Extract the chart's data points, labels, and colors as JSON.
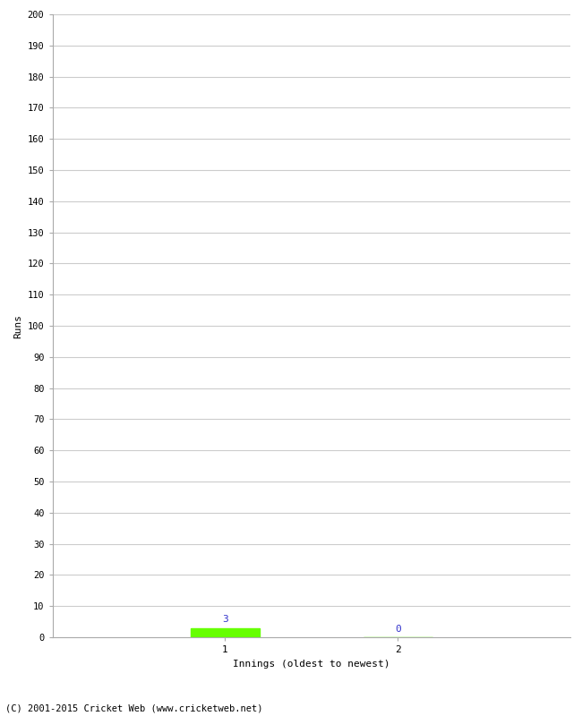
{
  "xlabel": "Innings (oldest to newest)",
  "ylabel": "Runs",
  "categories": [
    1,
    2
  ],
  "values": [
    3,
    0
  ],
  "bar_colors": [
    "#66ff00",
    "#66ff00"
  ],
  "value_labels": [
    "3",
    "0"
  ],
  "value_label_color": "#3333cc",
  "ylim": [
    0,
    200
  ],
  "ytick_step": 10,
  "background_color": "#ffffff",
  "footer": "(C) 2001-2015 Cricket Web (www.cricketweb.net)",
  "grid_color": "#cccccc",
  "bar_width": 0.4,
  "xlim": [
    0,
    3
  ]
}
